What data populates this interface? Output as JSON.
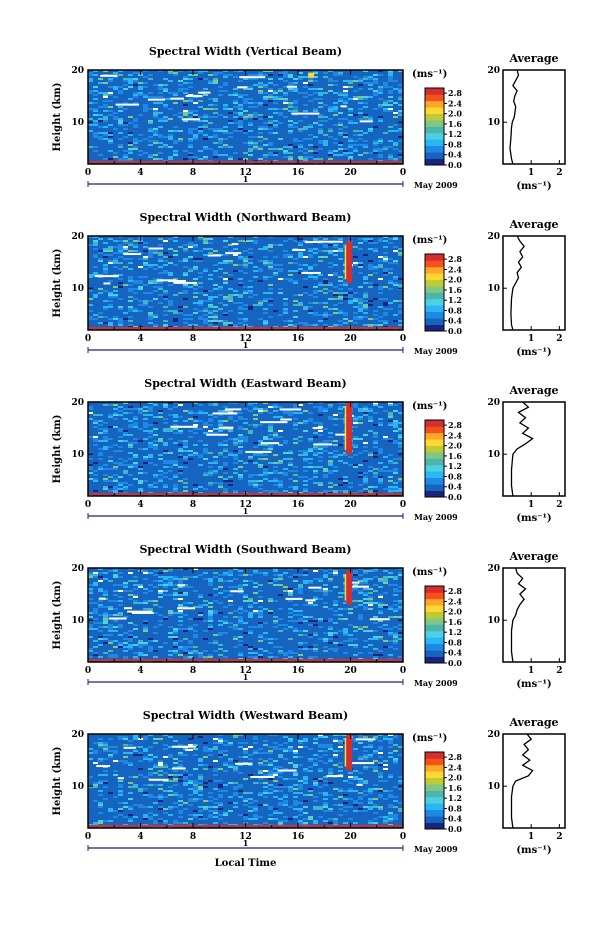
{
  "labels": {
    "ylabel": "Height (km)",
    "xlabel": "Local Time",
    "day": "1",
    "month": "May 2009",
    "colorbar_unit": "(ms⁻¹)",
    "avg_title": "Average",
    "avg_xlabel": "(ms⁻¹)"
  },
  "colorbar": {
    "ticks": [
      "0.0",
      "0.4",
      "0.8",
      "1.2",
      "1.6",
      "2.0",
      "2.4",
      "2.8"
    ],
    "range": [
      0,
      3.0
    ]
  },
  "colors": {
    "scale": [
      "#1a237e",
      "#1565c0",
      "#1e88e5",
      "#29b6f6",
      "#4dd0e1",
      "#4db6ac",
      "#81c784",
      "#c0ca33",
      "#fdd835",
      "#ffa726",
      "#f4511e",
      "#d32f2f"
    ]
  },
  "chart_data": [
    {
      "type": "heatmap",
      "title": "Spectral Width (Vertical Beam)",
      "x_ticks": [
        "0",
        "4",
        "8",
        "12",
        "16",
        "20",
        "0"
      ],
      "y_ticks": [
        "10",
        "20"
      ],
      "xlim": [
        0,
        24
      ],
      "ylim": [
        2,
        20
      ],
      "features": [
        {
          "x": 17,
          "y_range": [
            18.5,
            19.5
          ],
          "level": 2.0
        }
      ],
      "average": {
        "x_ticks": [
          "1",
          "2"
        ],
        "xlim": [
          0,
          2.2
        ],
        "profile": [
          [
            0.35,
            2
          ],
          [
            0.3,
            3
          ],
          [
            0.25,
            5
          ],
          [
            0.28,
            7
          ],
          [
            0.3,
            9
          ],
          [
            0.33,
            10
          ],
          [
            0.4,
            11
          ],
          [
            0.45,
            13
          ],
          [
            0.38,
            14
          ],
          [
            0.42,
            15
          ],
          [
            0.5,
            16
          ],
          [
            0.35,
            17
          ],
          [
            0.45,
            18
          ],
          [
            0.55,
            19
          ],
          [
            0.5,
            20
          ]
        ]
      }
    },
    {
      "type": "heatmap",
      "title": "Spectral Width (Northward Beam)",
      "x_ticks": [
        "0",
        "4",
        "8",
        "12",
        "16",
        "20",
        "0"
      ],
      "y_ticks": [
        "10",
        "20"
      ],
      "xlim": [
        0,
        24
      ],
      "ylim": [
        2,
        20
      ],
      "features": [
        {
          "x": 19.9,
          "y_range": [
            11,
            19
          ],
          "level": 2.9
        }
      ],
      "average": {
        "x_ticks": [
          "1",
          "2"
        ],
        "xlim": [
          0,
          2.2
        ],
        "profile": [
          [
            0.35,
            2
          ],
          [
            0.3,
            3
          ],
          [
            0.28,
            5
          ],
          [
            0.3,
            8
          ],
          [
            0.35,
            10
          ],
          [
            0.45,
            11
          ],
          [
            0.55,
            12
          ],
          [
            0.5,
            13
          ],
          [
            0.65,
            14
          ],
          [
            0.55,
            15
          ],
          [
            0.7,
            16
          ],
          [
            0.6,
            17
          ],
          [
            0.75,
            18
          ],
          [
            0.6,
            19
          ],
          [
            0.5,
            20
          ]
        ]
      }
    },
    {
      "type": "heatmap",
      "title": "Spectral Width (Eastward Beam)",
      "x_ticks": [
        "0",
        "4",
        "8",
        "12",
        "16",
        "20",
        "0"
      ],
      "y_ticks": [
        "10",
        "20"
      ],
      "xlim": [
        0,
        24
      ],
      "ylim": [
        2,
        20
      ],
      "features": [
        {
          "x": 19.9,
          "y_range": [
            10,
            20
          ],
          "level": 2.9
        }
      ],
      "average": {
        "x_ticks": [
          "1",
          "2"
        ],
        "xlim": [
          0,
          2.2
        ],
        "profile": [
          [
            0.35,
            2
          ],
          [
            0.3,
            4
          ],
          [
            0.3,
            7
          ],
          [
            0.35,
            10
          ],
          [
            0.5,
            11
          ],
          [
            0.8,
            12
          ],
          [
            1.05,
            13
          ],
          [
            0.7,
            14
          ],
          [
            0.9,
            15
          ],
          [
            0.6,
            16
          ],
          [
            0.8,
            17
          ],
          [
            0.55,
            18
          ],
          [
            0.9,
            19
          ],
          [
            0.7,
            20
          ]
        ]
      }
    },
    {
      "type": "heatmap",
      "title": "Spectral Width (Southward Beam)",
      "x_ticks": [
        "0",
        "4",
        "8",
        "12",
        "16",
        "20",
        "0"
      ],
      "y_ticks": [
        "10",
        "20"
      ],
      "xlim": [
        0,
        24
      ],
      "ylim": [
        2,
        20
      ],
      "features": [
        {
          "x": 19.9,
          "y_range": [
            13,
            19.5
          ],
          "level": 2.9
        }
      ],
      "average": {
        "x_ticks": [
          "1",
          "2"
        ],
        "xlim": [
          0,
          2.2
        ],
        "profile": [
          [
            0.35,
            2
          ],
          [
            0.3,
            4
          ],
          [
            0.3,
            8
          ],
          [
            0.35,
            10
          ],
          [
            0.45,
            11
          ],
          [
            0.5,
            12
          ],
          [
            0.6,
            13
          ],
          [
            0.75,
            14
          ],
          [
            0.6,
            15
          ],
          [
            0.8,
            16
          ],
          [
            0.55,
            17
          ],
          [
            0.7,
            18
          ],
          [
            0.5,
            19
          ],
          [
            0.45,
            20
          ]
        ]
      }
    },
    {
      "type": "heatmap",
      "title": "Spectral Width (Westward Beam)",
      "x_ticks": [
        "0",
        "4",
        "8",
        "12",
        "16",
        "20",
        "0"
      ],
      "y_ticks": [
        "10",
        "20"
      ],
      "xlim": [
        0,
        24
      ],
      "ylim": [
        2,
        20
      ],
      "features": [
        {
          "x": 19.9,
          "y_range": [
            13,
            20
          ],
          "level": 2.8
        }
      ],
      "average": {
        "x_ticks": [
          "1",
          "2"
        ],
        "xlim": [
          0,
          2.2
        ],
        "profile": [
          [
            0.35,
            2
          ],
          [
            0.3,
            4
          ],
          [
            0.3,
            8
          ],
          [
            0.35,
            10
          ],
          [
            0.45,
            11
          ],
          [
            0.9,
            12
          ],
          [
            1.05,
            13
          ],
          [
            0.7,
            14
          ],
          [
            0.95,
            15
          ],
          [
            0.7,
            16
          ],
          [
            0.9,
            17
          ],
          [
            0.75,
            18
          ],
          [
            1.0,
            19
          ],
          [
            0.85,
            20
          ]
        ]
      }
    }
  ]
}
